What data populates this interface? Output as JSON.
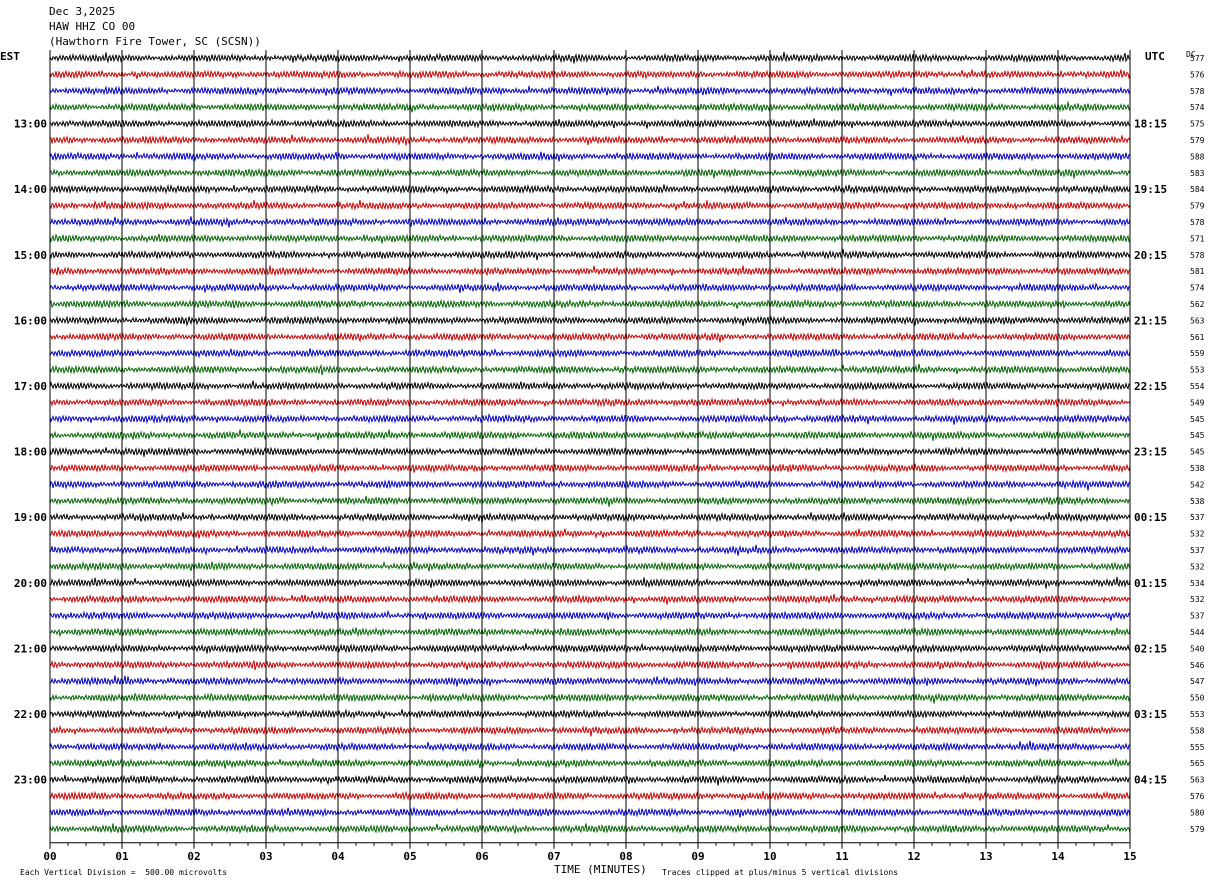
{
  "header": {
    "date": "Dec 3,2025",
    "channel": "HAW HHZ CO 00",
    "station": "(Hawthorn Fire Tower, SC (SCSN))"
  },
  "labels": {
    "left_tz": "EST",
    "right_tz": "UTC",
    "dc": "DC"
  },
  "footer": {
    "scale_note": "Each Vertical Division =  500.00 microvolts",
    "xlabel": "TIME (MINUTES)",
    "clip_note": "Traces clipped at plus/minus 5 vertical divisions"
  },
  "colors": {
    "trace_cycle": [
      "#000000",
      "#cc0000",
      "#0000cc",
      "#006600"
    ],
    "grid": "#000000"
  },
  "chart_data": {
    "type": "line",
    "xlabel": "TIME (MINUTES)",
    "xlim": [
      0,
      15
    ],
    "x_ticks": [
      "00",
      "01",
      "02",
      "03",
      "04",
      "05",
      "06",
      "07",
      "08",
      "09",
      "10",
      "11",
      "12",
      "13",
      "14",
      "15"
    ],
    "left_hour_labels": [
      {
        "row": 4,
        "label": "13:00"
      },
      {
        "row": 8,
        "label": "14:00"
      },
      {
        "row": 12,
        "label": "15:00"
      },
      {
        "row": 16,
        "label": "16:00"
      },
      {
        "row": 20,
        "label": "17:00"
      },
      {
        "row": 24,
        "label": "18:00"
      },
      {
        "row": 28,
        "label": "19:00"
      },
      {
        "row": 32,
        "label": "20:00"
      },
      {
        "row": 36,
        "label": "21:00"
      },
      {
        "row": 40,
        "label": "22:00"
      },
      {
        "row": 44,
        "label": "23:00"
      }
    ],
    "right_hour_labels": [
      {
        "row": 4,
        "label": "18:15"
      },
      {
        "row": 8,
        "label": "19:15"
      },
      {
        "row": 12,
        "label": "20:15"
      },
      {
        "row": 16,
        "label": "21:15"
      },
      {
        "row": 20,
        "label": "22:15"
      },
      {
        "row": 24,
        "label": "23:15"
      },
      {
        "row": 28,
        "label": "00:15"
      },
      {
        "row": 32,
        "label": "01:15"
      },
      {
        "row": 36,
        "label": "02:15"
      },
      {
        "row": 40,
        "label": "03:15"
      },
      {
        "row": 44,
        "label": "04:15"
      }
    ],
    "dc_offsets": [
      "577",
      "576",
      "578",
      "574",
      "575",
      "579",
      "588",
      "583",
      "584",
      "579",
      "578",
      "571",
      "578",
      "581",
      "574",
      "562",
      "563",
      "561",
      "559",
      "553",
      "554",
      "549",
      "545",
      "545",
      "545",
      "538",
      "542",
      "538",
      "537",
      "532",
      "537",
      "532",
      "534",
      "532",
      "537",
      "544",
      "540",
      "546",
      "547",
      "550",
      "553",
      "558",
      "555",
      "565",
      "563",
      "576",
      "580",
      "579"
    ]
  }
}
